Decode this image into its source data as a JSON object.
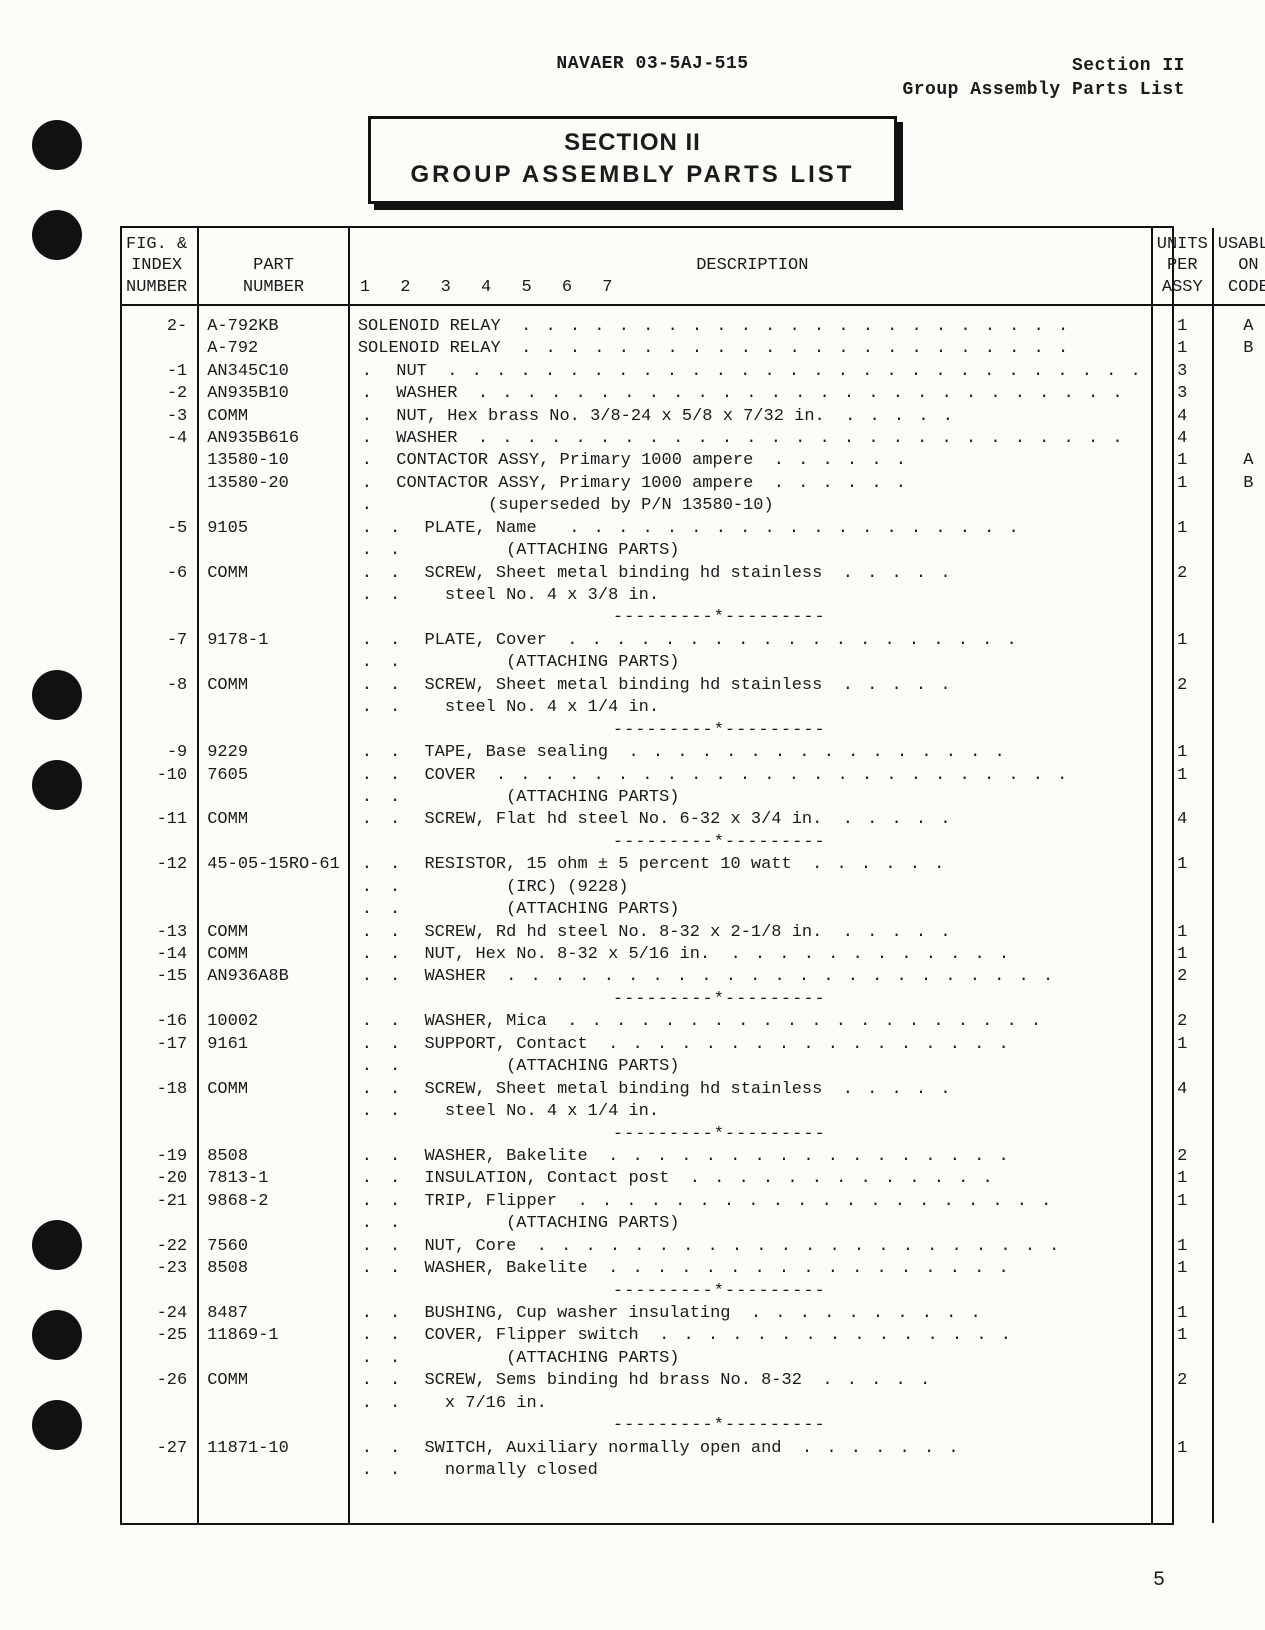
{
  "header": {
    "doc_id": "NAVAER 03-5AJ-515",
    "right_line1": "Section II",
    "right_line2": "Group Assembly Parts List"
  },
  "section_box": {
    "line1": "SECTION II",
    "line2": "GROUP ASSEMBLY PARTS LIST"
  },
  "columns": {
    "index": "FIG. &\nINDEX\nNUMBER",
    "part": "PART\nNUMBER",
    "desc_word": "DESCRIPTION",
    "desc_nums": "1  2  3  4  5   6   7",
    "units": "UNITS\nPER\nASSY",
    "code": "USABLE\nON\nCODE"
  },
  "rows": [
    {
      "idx": "2-",
      "part": "A-792KB",
      "indent": 0,
      "desc": "SOLENOID RELAY",
      "dots": ". . . . . . . . . . . . . . . . . . . . . . .",
      "units": "1",
      "code": "A"
    },
    {
      "idx": "",
      "part": "A-792",
      "indent": 0,
      "desc": "SOLENOID RELAY",
      "dots": ". . . . . . . . . . . . . . . . . . . . . . .",
      "units": "1",
      "code": "B"
    },
    {
      "idx": "-1",
      "part": "AN345C10",
      "indent": 1,
      "desc": "NUT",
      "dots": ". . . . . . . . . . . . . . . . . . . . . . . . . . . . .",
      "units": "3",
      "code": ""
    },
    {
      "idx": "-2",
      "part": "AN935B10",
      "indent": 1,
      "desc": "WASHER",
      "dots": ". . . . . . . . . . . . . . . . . . . . . . . . . . .",
      "units": "3",
      "code": ""
    },
    {
      "idx": "-3",
      "part": "COMM",
      "indent": 1,
      "desc": "NUT, Hex brass No. 3/8-24 x 5/8 x 7/32 in.",
      "dots": ". . . . .",
      "units": "4",
      "code": ""
    },
    {
      "idx": "-4",
      "part": "AN935B616",
      "indent": 1,
      "desc": "WASHER",
      "dots": ". . . . . . . . . . . . . . . . . . . . . . . . . . .",
      "units": "4",
      "code": ""
    },
    {
      "idx": "",
      "part": "13580-10",
      "indent": 1,
      "desc": "CONTACTOR ASSY, Primary 1000 ampere",
      "dots": ". . . . . .",
      "units": "1",
      "code": "A"
    },
    {
      "idx": "",
      "part": "13580-20",
      "indent": 1,
      "desc": "CONTACTOR ASSY, Primary 1000 ampere",
      "dots": ". . . . . .",
      "units": "1",
      "code": "B"
    },
    {
      "idx": "",
      "part": "",
      "indent": 1,
      "desc": " (superseded by P/N 13580-10)",
      "dots": "",
      "units": "",
      "code": "",
      "extra_indent": 2
    },
    {
      "idx": "-5",
      "part": "9105",
      "indent": 2,
      "desc": "PLATE, Name",
      "dots": "   . . . . . . . . . . . . . . . . . . .",
      "units": "1",
      "code": ""
    },
    {
      "idx": "",
      "part": "",
      "indent": 2,
      "desc": "        (ATTACHING PARTS)",
      "dots": "",
      "units": "",
      "code": ""
    },
    {
      "idx": "-6",
      "part": "COMM",
      "indent": 2,
      "desc": "SCREW, Sheet metal binding hd stainless",
      "dots": ". . . . .",
      "units": "2",
      "code": ""
    },
    {
      "idx": "",
      "part": "",
      "indent": 2,
      "desc": "  steel No. 4 x 3/8 in.",
      "dots": "",
      "units": "",
      "code": ""
    },
    {
      "idx": "",
      "part": "",
      "indent": 2,
      "desc_raw": "---------*---------",
      "units": "",
      "code": "",
      "sep": true
    },
    {
      "idx": "-7",
      "part": "9178-1",
      "indent": 2,
      "desc": "PLATE, Cover",
      "dots": ". . . . . . . . . . . . . . . . . . .",
      "units": "1",
      "code": ""
    },
    {
      "idx": "",
      "part": "",
      "indent": 2,
      "desc": "        (ATTACHING PARTS)",
      "dots": "",
      "units": "",
      "code": ""
    },
    {
      "idx": "-8",
      "part": "COMM",
      "indent": 2,
      "desc": "SCREW, Sheet metal binding hd stainless",
      "dots": ". . . . .",
      "units": "2",
      "code": ""
    },
    {
      "idx": "",
      "part": "",
      "indent": 2,
      "desc": "  steel No. 4 x 1/4 in.",
      "dots": "",
      "units": "",
      "code": ""
    },
    {
      "idx": "",
      "part": "",
      "indent": 2,
      "desc_raw": "---------*---------",
      "units": "",
      "code": "",
      "sep": true
    },
    {
      "idx": "-9",
      "part": "9229",
      "indent": 2,
      "desc": "TAPE, Base sealing",
      "dots": ". . . . . . . . . . . . . . . .",
      "units": "1",
      "code": ""
    },
    {
      "idx": "-10",
      "part": "7605",
      "indent": 2,
      "desc": "COVER",
      "dots": ". . . . . . . . . . . . . . . . . . . . . . . .",
      "units": "1",
      "code": ""
    },
    {
      "idx": "",
      "part": "",
      "indent": 2,
      "desc": "        (ATTACHING PARTS)",
      "dots": "",
      "units": "",
      "code": ""
    },
    {
      "idx": "-11",
      "part": "COMM",
      "indent": 2,
      "desc": "SCREW, Flat hd steel No. 6-32 x 3/4 in.",
      "dots": ". . . . .",
      "units": "4",
      "code": ""
    },
    {
      "idx": "",
      "part": "",
      "indent": 2,
      "desc_raw": "---------*---------",
      "units": "",
      "code": "",
      "sep": true
    },
    {
      "idx": "-12",
      "part": "45-05-15RO-61",
      "indent": 2,
      "desc": "RESISTOR, 15 ohm ± 5 percent 10 watt",
      "dots": ". . . . . .",
      "units": "1",
      "code": ""
    },
    {
      "idx": "",
      "part": "",
      "indent": 2,
      "desc": "        (IRC) (9228)",
      "dots": "",
      "units": "",
      "code": ""
    },
    {
      "idx": "",
      "part": "",
      "indent": 2,
      "desc": "        (ATTACHING PARTS)",
      "dots": "",
      "units": "",
      "code": ""
    },
    {
      "idx": "-13",
      "part": "COMM",
      "indent": 2,
      "desc": "SCREW, Rd hd steel No. 8-32 x 2-1/8 in.",
      "dots": ". . . . .",
      "units": "1",
      "code": ""
    },
    {
      "idx": "-14",
      "part": "COMM",
      "indent": 2,
      "desc": "NUT, Hex No. 8-32 x 5/16 in.",
      "dots": ". . . . . . . . . . . .",
      "units": "1",
      "code": ""
    },
    {
      "idx": "-15",
      "part": "AN936A8B",
      "indent": 2,
      "desc": "WASHER",
      "dots": ". . . . . . . . . . . . . . . . . . . . . . .",
      "units": "2",
      "code": ""
    },
    {
      "idx": "",
      "part": "",
      "indent": 2,
      "desc_raw": "---------*---------",
      "units": "",
      "code": "",
      "sep": true
    },
    {
      "idx": "-16",
      "part": "10002",
      "indent": 2,
      "desc": "WASHER, Mica",
      "dots": ". . . . . . . . . . . . . . . . . . . .",
      "units": "2",
      "code": ""
    },
    {
      "idx": "-17",
      "part": "9161",
      "indent": 2,
      "desc": "SUPPORT, Contact",
      "dots": ". . . . . . . . . . . . . . . . .",
      "units": "1",
      "code": ""
    },
    {
      "idx": "",
      "part": "",
      "indent": 2,
      "desc": "        (ATTACHING PARTS)",
      "dots": "",
      "units": "",
      "code": ""
    },
    {
      "idx": "-18",
      "part": "COMM",
      "indent": 2,
      "desc": "SCREW, Sheet metal binding hd stainless",
      "dots": ". . . . .",
      "units": "4",
      "code": ""
    },
    {
      "idx": "",
      "part": "",
      "indent": 2,
      "desc": "  steel No. 4 x 1/4 in.",
      "dots": "",
      "units": "",
      "code": ""
    },
    {
      "idx": "",
      "part": "",
      "indent": 2,
      "desc_raw": "---------*---------",
      "units": "",
      "code": "",
      "sep": true
    },
    {
      "idx": "-19",
      "part": "8508",
      "indent": 2,
      "desc": "WASHER, Bakelite",
      "dots": ". . . . . . . . . . . . . . . . .",
      "units": "2",
      "code": ""
    },
    {
      "idx": "-20",
      "part": "7813-1",
      "indent": 2,
      "desc": "INSULATION, Contact post",
      "dots": ". . . . . . . . . . . . .",
      "units": "1",
      "code": ""
    },
    {
      "idx": "-21",
      "part": "9868-2",
      "indent": 2,
      "desc": "TRIP, Flipper",
      "dots": ". . . . . . . . . . . . . . . . . . . .",
      "units": "1",
      "code": ""
    },
    {
      "idx": "",
      "part": "",
      "indent": 2,
      "desc": "        (ATTACHING PARTS)",
      "dots": "",
      "units": "",
      "code": ""
    },
    {
      "idx": "-22",
      "part": "7560",
      "indent": 2,
      "desc": "NUT, Core",
      "dots": ". . . . . . . . . . . . . . . . . . . . . .",
      "units": "1",
      "code": ""
    },
    {
      "idx": "-23",
      "part": "8508",
      "indent": 2,
      "desc": "WASHER, Bakelite",
      "dots": ". . . . . . . . . . . . . . . . .",
      "units": "1",
      "code": ""
    },
    {
      "idx": "",
      "part": "",
      "indent": 2,
      "desc_raw": "---------*---------",
      "units": "",
      "code": "",
      "sep": true
    },
    {
      "idx": "-24",
      "part": "8487",
      "indent": 2,
      "desc": "BUSHING, Cup washer insulating",
      "dots": ". . . . . . . . . .",
      "units": "1",
      "code": ""
    },
    {
      "idx": "-25",
      "part": "11869-1",
      "indent": 2,
      "desc": "COVER, Flipper switch",
      "dots": ". . . . . . . . . . . . . . .",
      "units": "1",
      "code": ""
    },
    {
      "idx": "",
      "part": "",
      "indent": 2,
      "desc": "        (ATTACHING PARTS)",
      "dots": "",
      "units": "",
      "code": ""
    },
    {
      "idx": "-26",
      "part": "COMM",
      "indent": 2,
      "desc": "SCREW, Sems binding hd brass No. 8-32",
      "dots": ". . . . .",
      "units": "2",
      "code": ""
    },
    {
      "idx": "",
      "part": "",
      "indent": 2,
      "desc": "  x 7/16 in.",
      "dots": "",
      "units": "",
      "code": ""
    },
    {
      "idx": "",
      "part": "",
      "indent": 2,
      "desc_raw": "---------*---------",
      "units": "",
      "code": "",
      "sep": true
    },
    {
      "idx": "-27",
      "part": "11871-10",
      "indent": 2,
      "desc": "SWITCH, Auxiliary normally open and",
      "dots": ". . . . . . .",
      "units": "1",
      "code": ""
    },
    {
      "idx": "",
      "part": "",
      "indent": 2,
      "desc": "  normally closed",
      "dots": "",
      "units": "",
      "code": ""
    }
  ],
  "page_number": "5"
}
